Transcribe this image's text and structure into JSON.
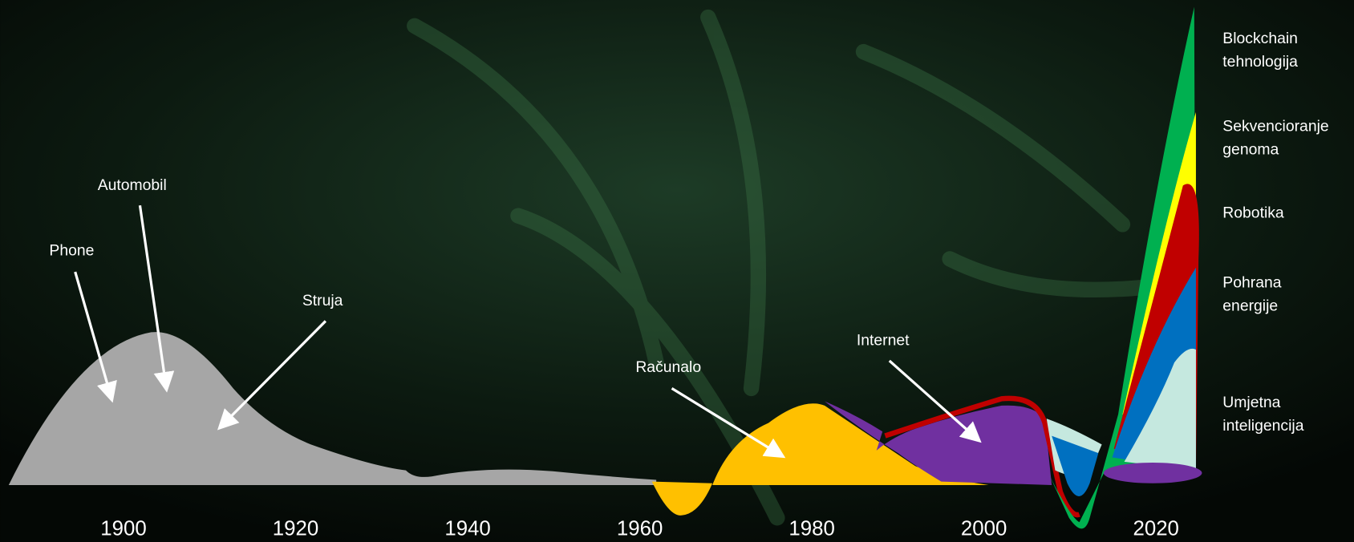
{
  "annotations": [
    "Phone",
    "Automobil",
    "Struja",
    "Računalo",
    "Internet"
  ],
  "legend": [
    [
      "Blockchain",
      "tehnologija"
    ],
    [
      "Sekvencioranje",
      "genoma"
    ],
    [
      "Robotika"
    ],
    [
      "Pohrana",
      "energije"
    ],
    [
      "Umjetna",
      "inteligencija"
    ]
  ],
  "years": [
    1900,
    1920,
    1940,
    1960,
    1980,
    2000,
    2020
  ]
}
